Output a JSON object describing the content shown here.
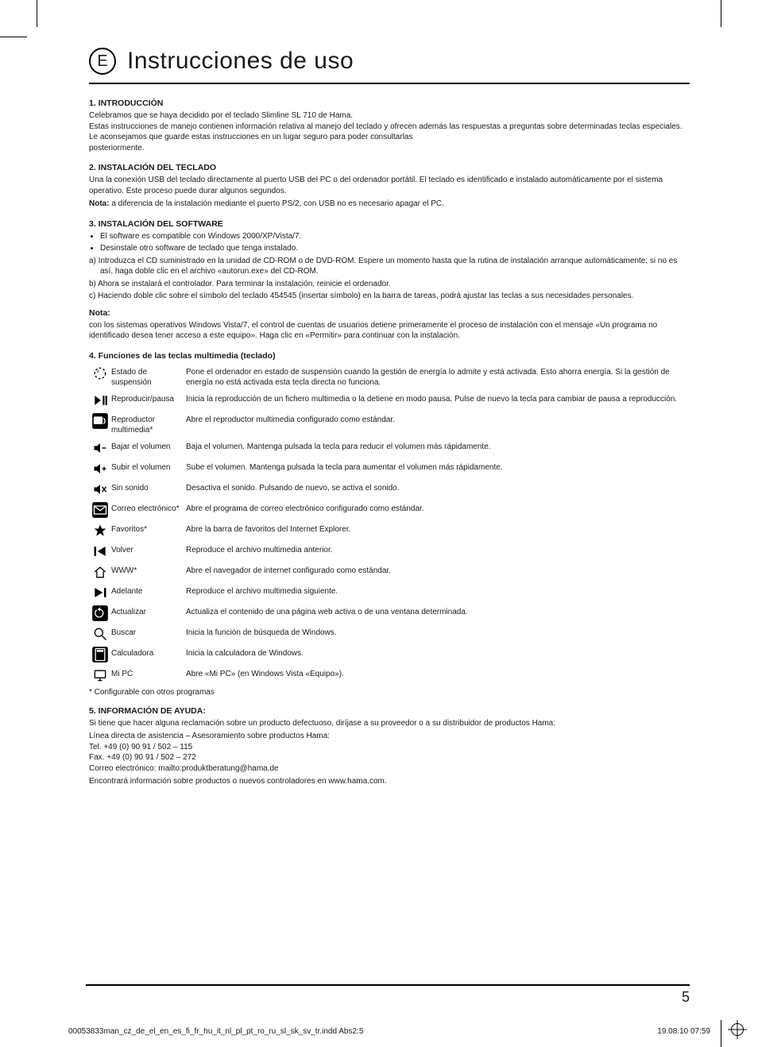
{
  "lang_badge": "E",
  "main_title": "Instrucciones de uso",
  "s1_head": "1. INTRODUCCIÓN",
  "s1_p": "Celebramos que se haya decidido por el teclado Slimline SL 710 de Hama.\nEstas instrucciones de manejo contienen información relativa al manejo del teclado y ofrecen además las respuestas a preguntas sobre determinadas teclas especiales. Le aconsejamos que guarde estas instrucciones en un lugar seguro para poder consultarlas\nposteriormente.",
  "s2_head": "2. INSTALACIÓN DEL TECLADO",
  "s2_p": "Una la conexión USB del teclado directamente al puerto USB del PC o del ordenador portátil. El teclado es identificado e instalado automáticamente por el sistema operativo. Este proceso puede durar algunos segundos.",
  "s2_note_label": "Nota:",
  "s2_note": " a diferencia de la instalación mediante el puerto PS/2, con USB no es necesario apagar el PC.",
  "s3_head": "3. INSTALACIÓN DEL SOFTWARE",
  "s3_b1": "El software es compatible con Windows 2000/XP/Vista/7.",
  "s3_b2": "Desinstale otro software de teclado que tenga instalado.",
  "s3_a": "a)  Introduzca el CD suministrado en la unidad de CD-ROM o de DVD-ROM. Espere un momento hasta que la rutina de instalación arranque automáticamente; si no es así, haga doble clic en el archivo «autorun.exe» del CD-ROM.",
  "s3_b": "b)  Ahora se instalará el controlador. Para terminar la instalación, reinicie el ordenador.",
  "s3_c": "c)  Haciendo doble clic sobre el símbolo del teclado 454545 (insertar símbolo) en la barra de tareas, podrá ajustar las teclas a sus necesidades personales.",
  "s3_note_head": "Nota:",
  "s3_note_p": "con los sistemas operativos Windows Vista/7, el control de cuentas de usuarios detiene primeramente el proceso de instalación con el mensaje «Un programa no identificado desea tener acceso a este equipo». Haga clic en «Permitir» para continuar con la instalación.",
  "s4_head": "4. Funciones de las teclas multimedia (teclado)",
  "rows": [
    {
      "icon": "sleep",
      "name": "Estado de suspensión",
      "desc": "Pone el ordenador en estado de suspensión cuando la gestión de energía lo admite y está activada. Esto ahorra energía. Si la gestión de energía no está activada esta tecla directa no funciona."
    },
    {
      "icon": "playpause",
      "name": "Reproducir/pausa",
      "desc": "Inicia la reproducción de un fichero multimedia o la detiene en modo pausa. Pulse de nuevo la tecla para cambiar de pausa a reproducción."
    },
    {
      "icon": "media",
      "name": "Reproductor multimedia*",
      "desc": "Abre el reproductor multimedia configurado como estándar."
    },
    {
      "icon": "voldown",
      "name": "Bajar el volumen",
      "desc": "Baja el volumen. Mantenga pulsada la tecla para reducir el volumen más rápidamente."
    },
    {
      "icon": "volup",
      "name": "Subir el volumen",
      "desc": "Sube el volumen. Mantenga pulsada la tecla para aumentar el volumen más rápidamente."
    },
    {
      "icon": "mute",
      "name": "Sin sonido",
      "desc": "Desactiva el sonido. Pulsando de nuevo, se activa el sonido."
    },
    {
      "icon": "mail",
      "name": "Correo electrónico*",
      "desc": "Abre el programa de correo electrónico configurado como estándar."
    },
    {
      "icon": "star",
      "name": "Favoritos*",
      "desc": "Abre la barra de favoritos del Internet Explorer."
    },
    {
      "icon": "prev",
      "name": "Volver",
      "desc": "Reproduce el archivo multimedia anterior."
    },
    {
      "icon": "home",
      "name": "WWW*",
      "desc": "Abre el navegador de internet configurado como estándar."
    },
    {
      "icon": "next",
      "name": "Adelante",
      "desc": "Reproduce el archivo multimedia siguiente."
    },
    {
      "icon": "refresh",
      "name": "Actualizar",
      "desc": "Actualiza el contenido de una página web activa o de una ventana determinada."
    },
    {
      "icon": "search",
      "name": "Buscar",
      "desc": "Inicia la función de búsqueda de Windows."
    },
    {
      "icon": "calc",
      "name": "Calculadora",
      "desc": "Inicia la calculadora de Windows."
    },
    {
      "icon": "mypc",
      "name": "Mi PC",
      "desc": "Abre «Mi PC» (en Windows Vista «Equipo»)."
    }
  ],
  "footnote": "* Configurable con otros programas",
  "s5_head": "5. INFORMACIÓN DE AYUDA:",
  "s5_p1": "Si tiene que hacer alguna reclamación sobre un producto defectuoso, diríjase a su proveedor o a su distribuidor de productos Hama:",
  "s5_p2": "Línea directa de asistencia – Asesoramiento sobre productos Hama:\nTel. +49 (0) 90 91 / 502 – 115\nFax. +49 (0) 90 91 / 502 – 272\nCorreo electrónico: mailto:produktberatung@hama.de",
  "s5_p3": "Encontrará información sobre productos o nuevos controladores en www.hama.com.",
  "page_number": "5",
  "footer_left": "00053833man_cz_de_el_en_es_fi_fr_hu_it_nl_pl_pt_ro_ru_sl_sk_sv_tr.indd   Abs2:5",
  "footer_right": "19.08.10   07:59",
  "icon_color": "#000000",
  "icon_bg": "#000000"
}
